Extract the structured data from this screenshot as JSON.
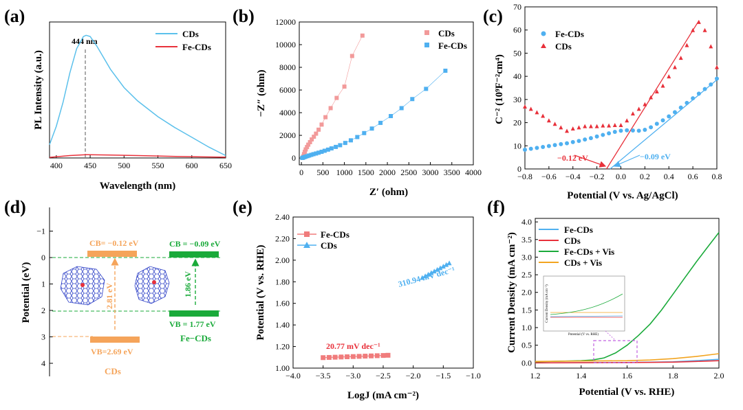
{
  "chart_data": [
    {
      "panel": "(a)",
      "type": "line",
      "xlabel": "Wavelength (nm)",
      "ylabel": "PL Intensity (a.u.)",
      "xlim": [
        390,
        650
      ],
      "ylim": [
        0,
        1.12
      ],
      "xticks": [
        "400",
        "450",
        "500",
        "550",
        "600",
        "650"
      ],
      "peak_label": "444 nm",
      "series": [
        {
          "name": "CDs",
          "color": "#5bc0eb",
          "x": [
            390,
            400,
            410,
            420,
            430,
            440,
            444,
            450,
            460,
            480,
            500,
            520,
            550,
            575,
            600,
            625,
            650
          ],
          "y": [
            0.11,
            0.26,
            0.46,
            0.7,
            0.9,
            1.0,
            1.01,
            1.0,
            0.92,
            0.73,
            0.58,
            0.47,
            0.34,
            0.25,
            0.17,
            0.09,
            0.02
          ]
        },
        {
          "name": "Fe-CDs",
          "color": "#e8303a",
          "x": [
            390,
            420,
            444,
            480,
            520,
            580,
            650
          ],
          "y": [
            0.005,
            0.02,
            0.027,
            0.024,
            0.02,
            0.012,
            0.006
          ]
        }
      ]
    },
    {
      "panel": "(b)",
      "type": "scatter",
      "xlabel": "Z′ (ohm)",
      "ylabel": "−Z″ (ohm)",
      "xlim": [
        -50,
        4000
      ],
      "ylim": [
        -600,
        12000
      ],
      "xticks": [
        "0",
        "500",
        "1000",
        "1500",
        "2000",
        "2500",
        "3000",
        "3500",
        "4000"
      ],
      "yticks": [
        "0",
        "2000",
        "4000",
        "6000",
        "8000",
        "10000",
        "12000"
      ],
      "series": [
        {
          "name": "CDs",
          "color": "#f29a9a",
          "marker": "square",
          "x": [
            30,
            45,
            60,
            80,
            100,
            130,
            160,
            200,
            240,
            290,
            340,
            400,
            470,
            560,
            680,
            820,
            1000,
            1180,
            1420
          ],
          "y": [
            20,
            150,
            350,
            550,
            760,
            970,
            1180,
            1400,
            1640,
            1880,
            2150,
            2500,
            2950,
            3600,
            4400,
            5300,
            6300,
            9000,
            10800
          ]
        },
        {
          "name": "Fe-CDs",
          "color": "#4fb0f0",
          "marker": "square",
          "x": [
            20,
            40,
            70,
            100,
            140,
            180,
            230,
            280,
            340,
            400,
            470,
            540,
            620,
            700,
            800,
            900,
            1020,
            1150,
            1300,
            1460,
            1640,
            1840,
            2080,
            2330,
            2580,
            2900,
            3350
          ],
          "y": [
            10,
            40,
            80,
            120,
            170,
            220,
            280,
            340,
            400,
            470,
            550,
            640,
            740,
            850,
            980,
            1130,
            1330,
            1560,
            1850,
            2200,
            2600,
            3100,
            3700,
            4400,
            5200,
            6100,
            7700
          ]
        }
      ]
    },
    {
      "panel": "(c)",
      "type": "scatter",
      "xlabel": "Potential (V vs. Ag/AgCl)",
      "ylabel": "C⁻² (10⁹F⁻²cm⁴)",
      "xlim": [
        -0.8,
        0.8
      ],
      "ylim": [
        0,
        70
      ],
      "xticks": [
        "−0.8",
        "−0.6",
        "−0.4",
        "−0.2",
        "0.0",
        "0.2",
        "0.4",
        "0.6",
        "0.8"
      ],
      "yticks": [
        "0",
        "10",
        "20",
        "30",
        "40",
        "50",
        "60",
        "70"
      ],
      "annotations": [
        "−0.12 eV",
        "−0.09 eV"
      ],
      "series": [
        {
          "name": "Fe-CDs",
          "color": "#4fb0f0",
          "marker": "circle",
          "x": [
            -0.8,
            -0.75,
            -0.7,
            -0.65,
            -0.6,
            -0.55,
            -0.5,
            -0.45,
            -0.4,
            -0.35,
            -0.3,
            -0.25,
            -0.2,
            -0.15,
            -0.1,
            -0.05,
            0.0,
            0.05,
            0.1,
            0.15,
            0.2,
            0.25,
            0.3,
            0.35,
            0.4,
            0.45,
            0.5,
            0.55,
            0.6,
            0.65,
            0.7,
            0.75,
            0.8
          ],
          "y": [
            8.3,
            8.7,
            9.1,
            9.5,
            9.9,
            10.3,
            10.7,
            11.1,
            11.6,
            12.1,
            12.7,
            13.3,
            14.0,
            14.7,
            15.4,
            16.0,
            16.5,
            16.7,
            16.6,
            16.5,
            16.9,
            18.0,
            19.5,
            21.0,
            22.7,
            24.5,
            26.5,
            28.5,
            30.5,
            32.5,
            34.5,
            36.5,
            39.0
          ]
        },
        {
          "name": "CDs",
          "color": "#e8303a",
          "marker": "triangle",
          "x": [
            -0.8,
            -0.75,
            -0.7,
            -0.65,
            -0.6,
            -0.55,
            -0.5,
            -0.45,
            -0.4,
            -0.35,
            -0.3,
            -0.25,
            -0.2,
            -0.15,
            -0.1,
            -0.05,
            0.0,
            0.05,
            0.1,
            0.15,
            0.2,
            0.25,
            0.3,
            0.35,
            0.4,
            0.45,
            0.5,
            0.55,
            0.6,
            0.65,
            0.7,
            0.75,
            0.8
          ],
          "y": [
            27,
            26,
            24.5,
            23,
            21,
            19.5,
            18,
            16.5,
            17.5,
            18,
            18.5,
            18.5,
            18.5,
            18.8,
            18.8,
            19,
            19,
            21,
            24,
            26,
            28,
            31,
            33.5,
            36,
            40,
            44,
            48,
            53.5,
            60,
            63.5,
            60,
            53,
            44
          ]
        }
      ],
      "fits": [
        {
          "name": "CDs",
          "color": "#e8303a",
          "x": [
            -0.12,
            0.65
          ],
          "y": [
            0,
            64
          ]
        },
        {
          "name": "Fe-CDs",
          "color": "#4fb0f0",
          "x": [
            -0.09,
            0.8
          ],
          "y": [
            0,
            38.5
          ]
        }
      ]
    },
    {
      "panel": "(d)",
      "type": "band diagram",
      "ylabel": "Potential (eV)",
      "yticks": [
        "−1",
        "0",
        "1",
        "2",
        "3",
        "4"
      ],
      "cds": {
        "name": "CDs",
        "cb": -0.12,
        "vb": 2.69,
        "cb_label": "CB= −0.12 eV",
        "vb_label": "VB=2.69 eV",
        "gap_label": "2.81 eV",
        "color": "#f5a45a"
      },
      "fecds": {
        "name": "Fe−CDs",
        "cb": -0.09,
        "vb": 1.77,
        "cb_label": "CB = −0.09 eV",
        "vb_label": "VB = 1.77 eV",
        "gap_label": "1.86 eV",
        "color": "#1aaa3a"
      }
    },
    {
      "panel": "(e)",
      "type": "scatter",
      "xlabel": "LogJ (mA cm⁻²)",
      "ylabel": "Potential (V vs. RHE)",
      "xlim": [
        -4.0,
        -1.0
      ],
      "ylim": [
        1.0,
        2.4
      ],
      "xticks": [
        "−4.0",
        "−3.5",
        "−3.0",
        "−2.5",
        "−2.0",
        "−1.5",
        "−1.0"
      ],
      "yticks": [
        "1.00",
        "1.20",
        "1.40",
        "1.60",
        "1.80",
        "2.00",
        "2.20",
        "2.40"
      ],
      "series": [
        {
          "name": "Fe-CDs",
          "color": "#f07c7c",
          "marker": "square",
          "x": [
            -3.5,
            -3.4,
            -3.3,
            -3.2,
            -3.1,
            -3.0,
            -2.9,
            -2.8,
            -2.7,
            -2.6,
            -2.5,
            -2.42
          ],
          "y": [
            1.097,
            1.099,
            1.101,
            1.103,
            1.105,
            1.107,
            1.109,
            1.111,
            1.113,
            1.115,
            1.117,
            1.119
          ],
          "tafel_label": "20.77 mV dec⁻¹"
        },
        {
          "name": "CDs",
          "color": "#4fb0f0",
          "marker": "triangle",
          "x": [
            -1.85,
            -1.8,
            -1.75,
            -1.7,
            -1.65,
            -1.6,
            -1.55,
            -1.5,
            -1.45,
            -1.4
          ],
          "y": [
            1.84,
            1.855,
            1.87,
            1.885,
            1.9,
            1.915,
            1.93,
            1.945,
            1.96,
            1.975
          ],
          "tafel_label": "310.94 mV dec⁻¹"
        }
      ]
    },
    {
      "panel": "(f)",
      "type": "line",
      "xlabel": "Potential (V vs. RHE)",
      "ylabel": "Current Density (mA cm⁻²)",
      "xlim": [
        1.2,
        2.0
      ],
      "ylim": [
        -0.15,
        4.1
      ],
      "xticks": [
        "1.2",
        "1.4",
        "1.6",
        "1.8",
        "2.0"
      ],
      "yticks": [
        "0.0",
        "0.5",
        "1.0",
        "1.5",
        "2.0",
        "2.5",
        "3.0",
        "3.5",
        "4.0"
      ],
      "series": [
        {
          "name": "Fe-CDs",
          "color": "#4fb0f0",
          "x": [
            1.2,
            1.4,
            1.6,
            1.8,
            1.9,
            2.0
          ],
          "y": [
            0.0,
            0.005,
            0.01,
            0.03,
            0.06,
            0.1
          ]
        },
        {
          "name": "CDs",
          "color": "#e8303a",
          "x": [
            1.2,
            1.4,
            1.6,
            1.8,
            1.9,
            2.0
          ],
          "y": [
            0.0,
            0.003,
            0.008,
            0.02,
            0.04,
            0.06
          ]
        },
        {
          "name": "Fe-CDs + Vis",
          "color": "#1aaa3a",
          "x": [
            1.2,
            1.3,
            1.4,
            1.45,
            1.5,
            1.55,
            1.6,
            1.65,
            1.7,
            1.75,
            1.8,
            1.85,
            1.9,
            1.95,
            2.0
          ],
          "y": [
            0.03,
            0.045,
            0.06,
            0.08,
            0.14,
            0.28,
            0.5,
            0.78,
            1.1,
            1.5,
            1.95,
            2.4,
            2.85,
            3.28,
            3.7
          ]
        },
        {
          "name": "CDs + Vis",
          "color": "#f2a41f",
          "x": [
            1.2,
            1.4,
            1.6,
            1.7,
            1.8,
            1.9,
            2.0
          ],
          "y": [
            0.04,
            0.05,
            0.06,
            0.08,
            0.12,
            0.18,
            0.26
          ]
        }
      ],
      "inset": {
        "xlabel": "Potential (V vs. RHE)",
        "ylabel": "Current Density (mA cm⁻²)"
      }
    }
  ]
}
